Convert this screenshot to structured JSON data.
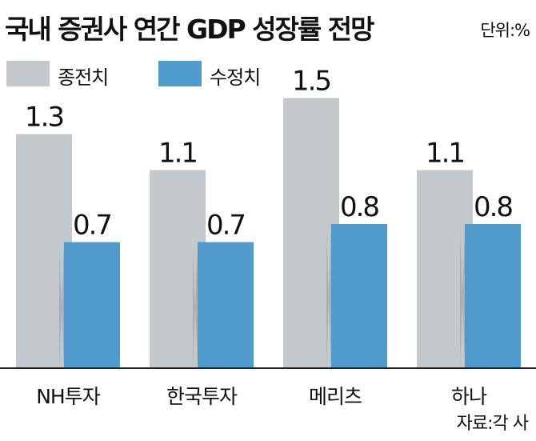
{
  "header": {
    "title": "국내 증권사 연간 GDP 성장률 전망",
    "unit": "단위:%"
  },
  "source": "자료:각 사",
  "colors": {
    "previous": "#c3c8cc",
    "revised": "#4f9bcb",
    "axis": "#222222"
  },
  "chart_data": {
    "type": "bar",
    "title": "국내 증권사 연간 GDP 성장률 전망",
    "unit": "단위:%",
    "categories": [
      "NH투자",
      "한국투자",
      "메리츠",
      "하나"
    ],
    "series": [
      {
        "name": "종전치",
        "values": [
          1.3,
          1.1,
          1.5,
          1.1
        ]
      },
      {
        "name": "수정치",
        "values": [
          0.7,
          0.7,
          0.8,
          0.8
        ]
      }
    ],
    "ylim": [
      0,
      1.6
    ],
    "grid": false,
    "legend": "top-left",
    "data_labels": true
  }
}
